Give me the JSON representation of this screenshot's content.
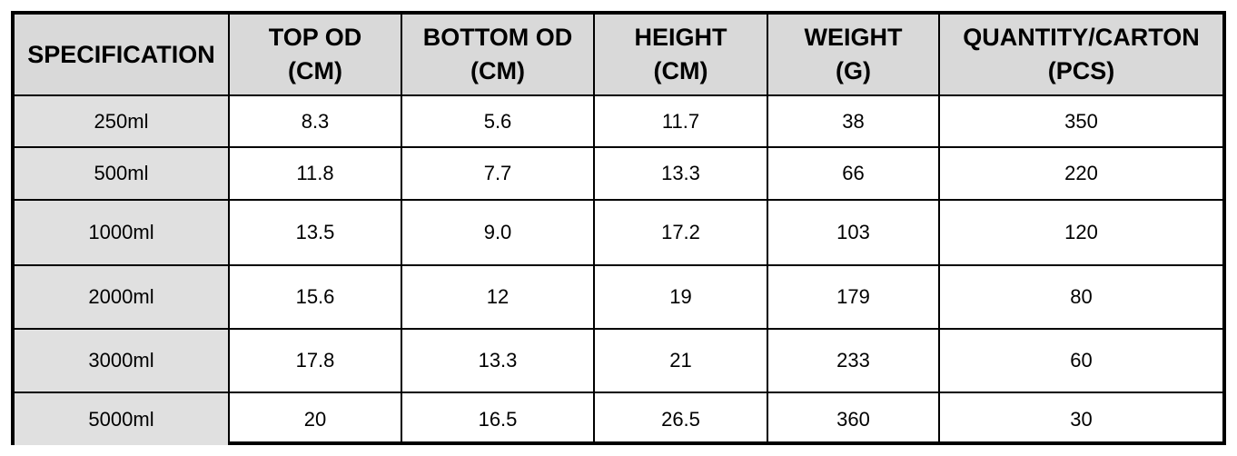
{
  "table": {
    "header": [
      [
        "SPECIFICATION"
      ],
      [
        "TOP OD",
        "(CM)"
      ],
      [
        "BOTTOM OD",
        "(CM)"
      ],
      [
        "HEIGHT",
        "(CM)"
      ],
      [
        "WEIGHT",
        "(G)"
      ],
      [
        "QUANTITY/CARTON",
        "(PCS)"
      ]
    ],
    "rows": [
      [
        "250ml",
        "8.3",
        "5.6",
        "11.7",
        "38",
        "350"
      ],
      [
        "500ml",
        "11.8",
        "7.7",
        "13.3",
        "66",
        "220"
      ],
      [
        "1000ml",
        "13.5",
        "9.0",
        "17.2",
        "103",
        "120"
      ],
      [
        "2000ml",
        "15.6",
        "12",
        "19",
        "179",
        "80"
      ],
      [
        "3000ml",
        "17.8",
        "13.3",
        "21",
        "233",
        "60"
      ],
      [
        "5000ml",
        "20",
        "16.5",
        "26.5",
        "360",
        "30"
      ]
    ]
  }
}
